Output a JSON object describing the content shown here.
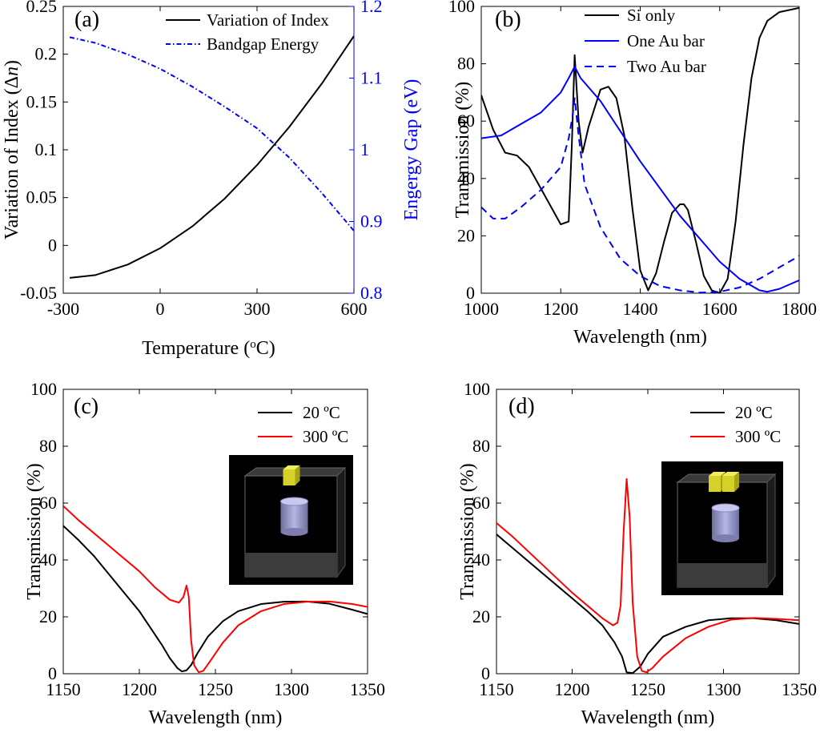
{
  "chart_data": [
    {
      "panel": "(a)",
      "type": "line",
      "xlabel": "Temperature (°C)",
      "ylabel": "Variation of Index (Δn)",
      "y2label": "Engergy Gap (eV)",
      "xlim": [
        -300,
        600
      ],
      "ylim": [
        -0.05,
        0.25
      ],
      "y2lim": [
        0.8,
        1.2
      ],
      "xticks": [
        "-300",
        "0",
        "300",
        "600"
      ],
      "yticks": [
        "-0.05",
        "0",
        "0.05",
        "0.1",
        "0.15",
        "0.2",
        "0.25"
      ],
      "y2ticks": [
        "0.8",
        "0.9",
        "1",
        "1.1",
        "1.2"
      ],
      "legend_position": "top-right",
      "series": [
        {
          "name": "Variation of Index",
          "axis": "left",
          "color": "#000000",
          "style": "solid",
          "x": [
            -280,
            -200,
            -100,
            0,
            100,
            200,
            300,
            400,
            500,
            600
          ],
          "y": [
            -0.034,
            -0.031,
            -0.02,
            -0.003,
            0.02,
            0.049,
            0.084,
            0.124,
            0.169,
            0.219
          ]
        },
        {
          "name": "Bandgap Energy",
          "axis": "right",
          "color": "#0000ff",
          "style": "dashdot",
          "x": [
            -280,
            -200,
            -100,
            0,
            100,
            200,
            300,
            400,
            500,
            600
          ],
          "y": [
            1.157,
            1.149,
            1.133,
            1.113,
            1.088,
            1.06,
            1.03,
            0.989,
            0.94,
            0.887
          ]
        }
      ]
    },
    {
      "panel": "(b)",
      "type": "line",
      "xlabel": "Wavelength (nm)",
      "ylabel": "Transmission (%)",
      "xlim": [
        1000,
        1800
      ],
      "ylim": [
        0,
        100
      ],
      "xticks": [
        "1000",
        "1200",
        "1400",
        "1600",
        "1800"
      ],
      "yticks": [
        "0",
        "20",
        "40",
        "60",
        "80",
        "100"
      ],
      "legend_position": "top-right",
      "series": [
        {
          "name": "Si only",
          "color": "#000000",
          "style": "solid",
          "x": [
            1000,
            1030,
            1060,
            1090,
            1120,
            1160,
            1200,
            1220,
            1228,
            1235,
            1245,
            1255,
            1270,
            1300,
            1320,
            1340,
            1360,
            1380,
            1400,
            1420,
            1440,
            1460,
            1480,
            1500,
            1510,
            1520,
            1540,
            1560,
            1580,
            1600,
            1620,
            1640,
            1660,
            1680,
            1700,
            1720,
            1750,
            1800
          ],
          "y": [
            69,
            57,
            49,
            48,
            44,
            34,
            24,
            25,
            52,
            83,
            60,
            49,
            58,
            71,
            72,
            68,
            55,
            30,
            8,
            1,
            7,
            18,
            28,
            31,
            31,
            29,
            18,
            6,
            1,
            0,
            5,
            25,
            52,
            75,
            89,
            95,
            98,
            99.5
          ]
        },
        {
          "name": "One Au bar",
          "color": "#0000ff",
          "style": "solid",
          "x": [
            1000,
            1050,
            1100,
            1150,
            1200,
            1220,
            1235,
            1250,
            1300,
            1400,
            1500,
            1600,
            1650,
            1700,
            1720,
            1750,
            1800
          ],
          "y": [
            54,
            55,
            59,
            63,
            70,
            75,
            79,
            75,
            67,
            46,
            27,
            11,
            5,
            1,
            0.5,
            1.5,
            4.5
          ]
        },
        {
          "name": "Two Au bar",
          "color": "#0000ff",
          "style": "dashed",
          "x": [
            1000,
            1030,
            1060,
            1100,
            1150,
            1200,
            1220,
            1230,
            1235,
            1245,
            1260,
            1300,
            1350,
            1400,
            1450,
            1500,
            1550,
            1600,
            1650,
            1700,
            1750,
            1800
          ],
          "y": [
            30,
            26,
            26,
            30,
            36,
            44,
            54,
            62,
            68,
            55,
            38,
            23,
            12,
            6,
            2.5,
            1,
            0.2,
            0.5,
            2,
            5,
            9,
            13
          ]
        }
      ]
    },
    {
      "panel": "(c)",
      "type": "line",
      "xlabel": "Wavelength (nm)",
      "ylabel": "Transmission (%)",
      "xlim": [
        1150,
        1350
      ],
      "ylim": [
        0,
        100
      ],
      "xticks": [
        "1150",
        "1200",
        "1250",
        "1300",
        "1350"
      ],
      "yticks": [
        "0",
        "20",
        "40",
        "60",
        "80",
        "100"
      ],
      "legend_position": "top-right",
      "inset": "single-bar",
      "series": [
        {
          "name": "20 ºC",
          "color": "#000000",
          "style": "solid",
          "x": [
            1150,
            1160,
            1170,
            1180,
            1190,
            1200,
            1210,
            1215,
            1220,
            1225,
            1228,
            1231,
            1234,
            1238,
            1245,
            1255,
            1265,
            1280,
            1295,
            1310,
            1325,
            1340,
            1350
          ],
          "y": [
            52,
            47,
            41.5,
            35,
            28.5,
            22,
            14,
            10,
            5.5,
            2,
            0.8,
            1.2,
            3,
            7,
            13,
            18.5,
            22,
            24.5,
            25.3,
            25.4,
            24.6,
            22.5,
            21
          ]
        },
        {
          "name": "300 ºC",
          "color": "#ff0000",
          "style": "solid",
          "x": [
            1150,
            1160,
            1170,
            1180,
            1190,
            1200,
            1210,
            1220,
            1226,
            1229,
            1231,
            1232.5,
            1234,
            1236,
            1239,
            1242,
            1246,
            1255,
            1265,
            1280,
            1295,
            1310,
            1325,
            1340,
            1350
          ],
          "y": [
            59,
            54,
            49.5,
            45,
            40.5,
            36,
            30.5,
            26,
            25,
            27,
            31,
            27,
            12,
            3,
            0.5,
            1,
            4,
            11,
            17,
            22,
            24.5,
            25.3,
            25.4,
            24.5,
            23.5
          ]
        }
      ]
    },
    {
      "panel": "(d)",
      "type": "line",
      "xlabel": "Wavelength (nm)",
      "ylabel": "Transmission (%)",
      "xlim": [
        1150,
        1350
      ],
      "ylim": [
        0,
        100
      ],
      "xticks": [
        "1150",
        "1200",
        "1250",
        "1300",
        "1350"
      ],
      "yticks": [
        "0",
        "20",
        "40",
        "60",
        "80",
        "100"
      ],
      "legend_position": "top-right",
      "inset": "double-bar",
      "series": [
        {
          "name": "20 ºC",
          "color": "#000000",
          "style": "solid",
          "x": [
            1150,
            1160,
            1170,
            1180,
            1190,
            1200,
            1210,
            1220,
            1228,
            1233,
            1236,
            1240,
            1245,
            1250,
            1260,
            1275,
            1290,
            1305,
            1320,
            1335,
            1350
          ],
          "y": [
            49,
            44.5,
            40,
            35.5,
            31,
            26.5,
            22,
            17,
            11,
            6,
            0.5,
            0.2,
            2.5,
            7,
            13,
            16.5,
            18.8,
            19.5,
            19.5,
            18.8,
            17.5
          ]
        },
        {
          "name": "300 ºC",
          "color": "#ff0000",
          "style": "solid",
          "x": [
            1150,
            1160,
            1170,
            1180,
            1190,
            1200,
            1210,
            1220,
            1227,
            1230,
            1232,
            1234,
            1236,
            1238,
            1240,
            1243,
            1246,
            1249,
            1253,
            1260,
            1275,
            1290,
            1305,
            1320,
            1335,
            1350
          ],
          "y": [
            53,
            48.5,
            43.5,
            38.5,
            33.5,
            28.5,
            24,
            19.5,
            17,
            18,
            24,
            50,
            68.5,
            55,
            25,
            6,
            1,
            0.5,
            2,
            6,
            12.5,
            16.5,
            19,
            19.6,
            19.3,
            18.8
          ]
        }
      ]
    }
  ]
}
